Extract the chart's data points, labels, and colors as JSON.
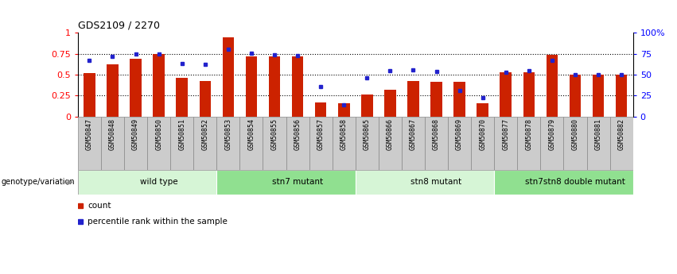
{
  "title": "GDS2109 / 2270",
  "samples": [
    "GSM50847",
    "GSM50848",
    "GSM50849",
    "GSM50850",
    "GSM50851",
    "GSM50852",
    "GSM50853",
    "GSM50854",
    "GSM50855",
    "GSM50856",
    "GSM50857",
    "GSM50858",
    "GSM50865",
    "GSM50866",
    "GSM50867",
    "GSM50868",
    "GSM50869",
    "GSM50870",
    "GSM50877",
    "GSM50878",
    "GSM50879",
    "GSM50880",
    "GSM50881",
    "GSM50882"
  ],
  "counts": [
    0.52,
    0.62,
    0.69,
    0.75,
    0.46,
    0.42,
    0.95,
    0.72,
    0.72,
    0.72,
    0.17,
    0.16,
    0.26,
    0.32,
    0.42,
    0.41,
    0.41,
    0.16,
    0.53,
    0.53,
    0.74,
    0.5,
    0.5,
    0.5
  ],
  "percentiles": [
    0.67,
    0.72,
    0.75,
    0.75,
    0.63,
    0.62,
    0.8,
    0.76,
    0.74,
    0.73,
    0.36,
    0.14,
    0.46,
    0.55,
    0.56,
    0.54,
    0.31,
    0.22,
    0.53,
    0.55,
    0.67,
    0.5,
    0.5,
    0.5
  ],
  "groups": [
    {
      "label": "wild type",
      "start": 0,
      "end": 6,
      "color": "#d6f5d6"
    },
    {
      "label": "stn7 mutant",
      "start": 6,
      "end": 12,
      "color": "#90e090"
    },
    {
      "label": "stn8 mutant",
      "start": 12,
      "end": 18,
      "color": "#d6f5d6"
    },
    {
      "label": "stn7stn8 double mutant",
      "start": 18,
      "end": 24,
      "color": "#90e090"
    }
  ],
  "bar_color": "#cc2200",
  "dot_color": "#2222cc",
  "ylim": [
    0,
    1.0
  ],
  "yticks_left": [
    0,
    0.25,
    0.5,
    0.75,
    1.0
  ],
  "yticklabels_left": [
    "0",
    "0.25",
    "0.5",
    "0.75",
    "1"
  ],
  "yticks_right": [
    0,
    25,
    50,
    75,
    100
  ],
  "yticklabels_right": [
    "0",
    "25",
    "50",
    "75",
    "100%"
  ],
  "genotype_label": "genotype/variation",
  "legend_count": "count",
  "legend_percentile": "percentile rank within the sample",
  "xtick_bg": "#cccccc",
  "xtick_border": "#888888"
}
